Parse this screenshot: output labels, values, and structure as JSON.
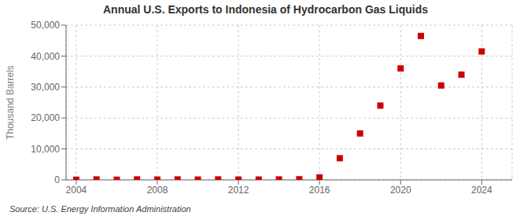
{
  "chart_data": {
    "type": "scatter",
    "title": "Annual U.S. Exports to Indonesia of Hydrocarbon Gas Liquids",
    "ylabel": "Thousand Barrels",
    "annotation": "Source: U.S. Energy Information Administration",
    "x": [
      2004,
      2005,
      2006,
      2007,
      2008,
      2009,
      2010,
      2011,
      2012,
      2013,
      2014,
      2015,
      2016,
      2017,
      2018,
      2019,
      2020,
      2021,
      2022,
      2023,
      2024
    ],
    "values": [
      50,
      150,
      50,
      150,
      100,
      150,
      100,
      150,
      100,
      100,
      150,
      200,
      800,
      7000,
      15000,
      24000,
      36000,
      46500,
      30500,
      34000,
      41500
    ],
    "color": "#cc0000",
    "marker": "square",
    "xlim": [
      2003.5,
      2025.5
    ],
    "ylim": [
      0,
      50000
    ],
    "xticks": [
      2004,
      2008,
      2012,
      2016,
      2020,
      2024
    ],
    "yticks": [
      0,
      {
        "value": 10000,
        "label": "10,000"
      },
      {
        "value": 20000,
        "label": "20,000"
      },
      {
        "value": 30000,
        "label": "30,000"
      },
      {
        "value": 40000,
        "label": "40,000"
      },
      {
        "value": 50000,
        "label": "50,000"
      }
    ],
    "grid": true
  }
}
